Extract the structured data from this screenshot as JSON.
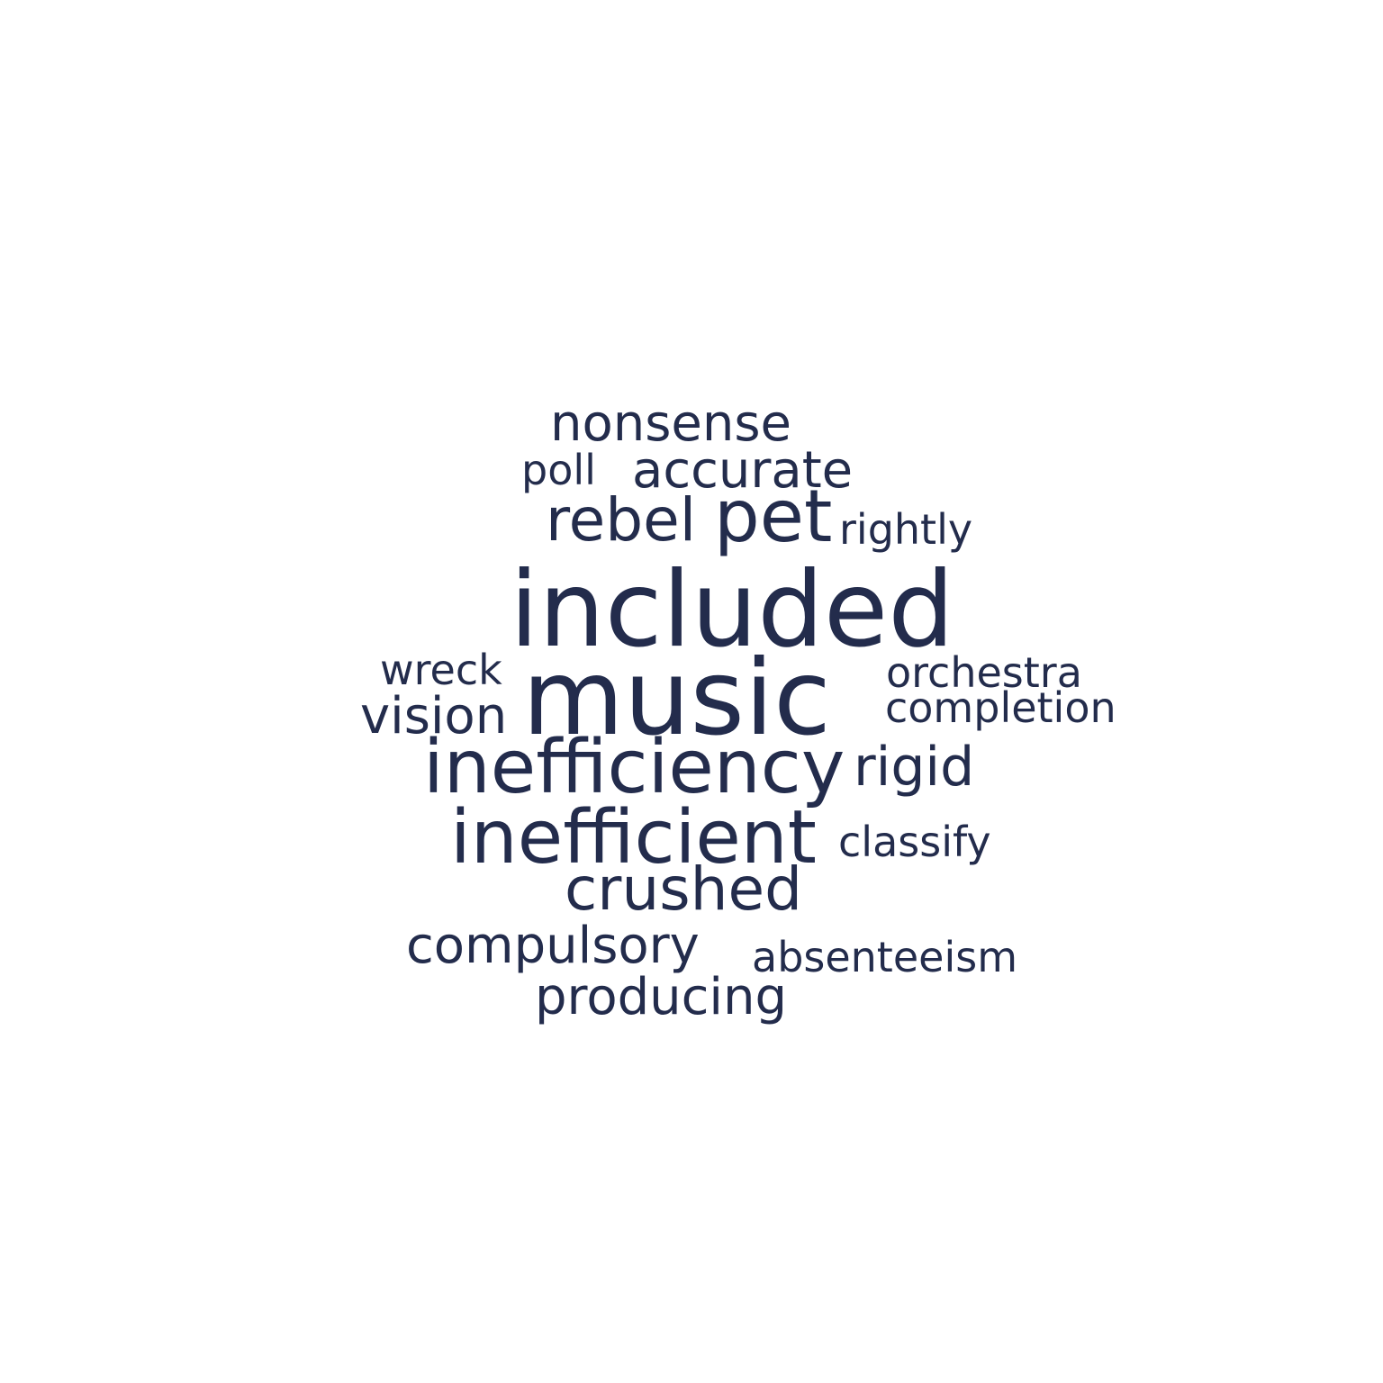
{
  "word_cloud": {
    "color": "#232c4c",
    "background": "#ffffff",
    "words": [
      {
        "text": "included",
        "weight": 1.0
      },
      {
        "text": "music",
        "weight": 1.0
      },
      {
        "text": "inefficiency",
        "weight": 0.72
      },
      {
        "text": "inefficient",
        "weight": 0.72
      },
      {
        "text": "pet",
        "weight": 0.7
      },
      {
        "text": "rebel",
        "weight": 0.6
      },
      {
        "text": "crushed",
        "weight": 0.6
      },
      {
        "text": "rigid",
        "weight": 0.55
      },
      {
        "text": "nonsense",
        "weight": 0.5
      },
      {
        "text": "accurate",
        "weight": 0.5
      },
      {
        "text": "vision",
        "weight": 0.5
      },
      {
        "text": "compulsory",
        "weight": 0.5
      },
      {
        "text": "producing",
        "weight": 0.5
      },
      {
        "text": "orchestra",
        "weight": 0.42
      },
      {
        "text": "completion",
        "weight": 0.42
      },
      {
        "text": "rightly",
        "weight": 0.42
      },
      {
        "text": "wreck",
        "weight": 0.42
      },
      {
        "text": "classify",
        "weight": 0.42
      },
      {
        "text": "absenteeism",
        "weight": 0.42
      },
      {
        "text": "poll",
        "weight": 0.4
      }
    ]
  }
}
